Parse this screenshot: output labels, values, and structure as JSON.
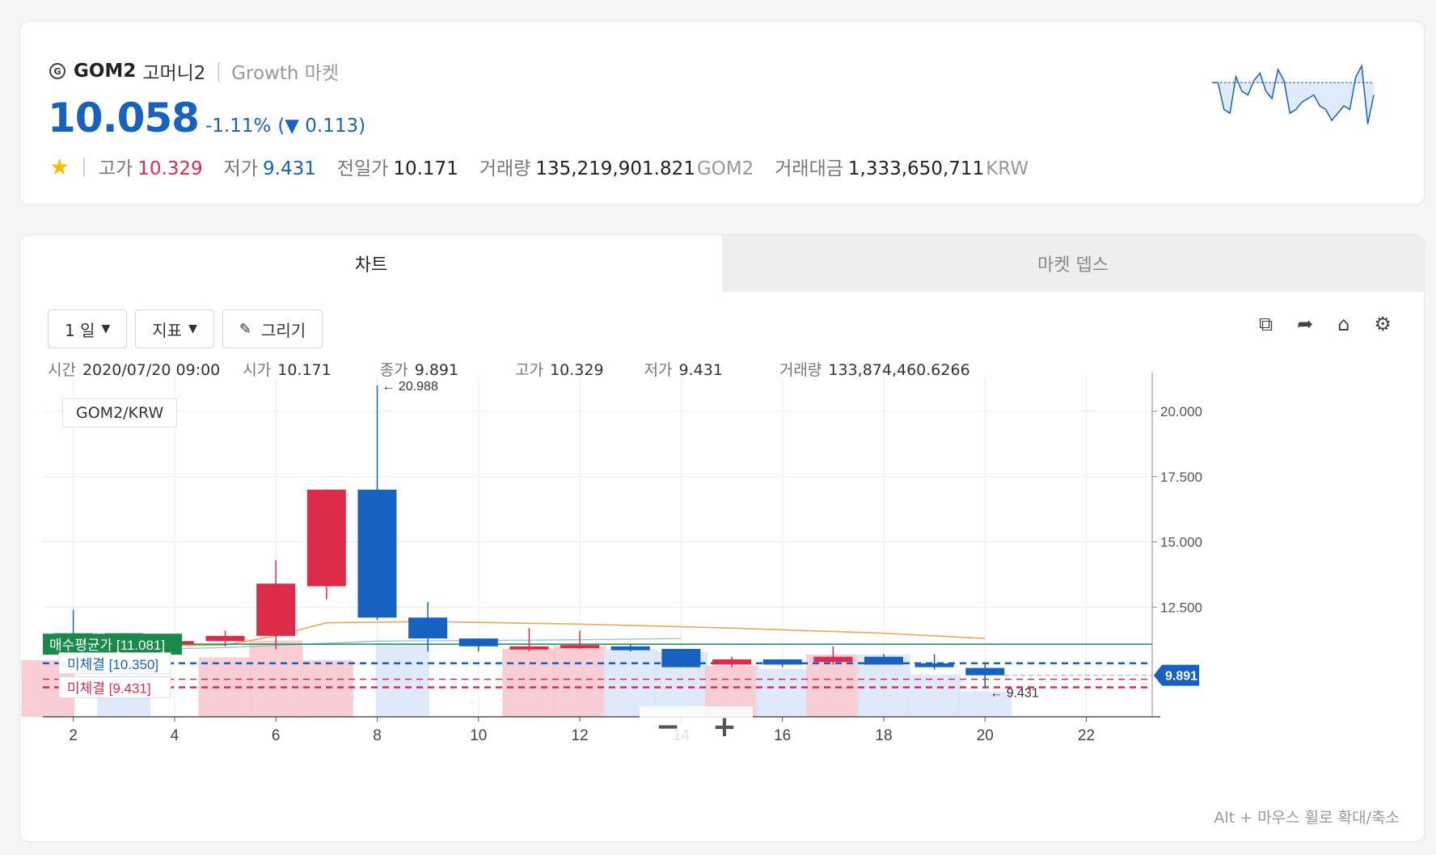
{
  "header": {
    "coin_icon": "G",
    "symbol": "GOM2",
    "korean_name": "고머니2",
    "market": "Growth 마켓",
    "price": "10.058",
    "change_pct": "-1.11%",
    "change_abs": "(▼ 0.113)",
    "favorite_icon": "star-icon",
    "stats": [
      {
        "label": "고가",
        "value": "10.329",
        "color": "#dd2b4a"
      },
      {
        "label": "저가",
        "value": "9.431",
        "color": "#1761c0"
      },
      {
        "label": "전일가",
        "value": "10.171",
        "color": "#222222"
      }
    ],
    "volume_label": "거래량",
    "volume_value": "135,219,901.821",
    "volume_unit": "GOM2",
    "amount_label": "거래대금",
    "amount_value": "1,333,650,711",
    "amount_unit": "KRW"
  },
  "tabs": [
    {
      "label": "차트",
      "active": true
    },
    {
      "label": "마켓 뎁스",
      "active": false
    }
  ],
  "toolbar": {
    "interval": "1 일",
    "indicator": "지표",
    "draw": "그리기",
    "icons": [
      "external-link-icon",
      "share-icon",
      "tag-icon",
      "settings-icon"
    ]
  },
  "ohlc": {
    "time_label": "시간",
    "time": "2020/07/20 09:00",
    "open_label": "시가",
    "open": "10.171",
    "close_label": "종가",
    "close": "9.891",
    "high_label": "고가",
    "high": "10.329",
    "low_label": "저가",
    "low": "9.431",
    "volume_label": "거래량",
    "volume": "133,874,460.6266"
  },
  "pair": "GOM2/KRW",
  "hint": "Alt + 마우스 휠로 확대/축소",
  "zoom": {
    "minus": "−",
    "plus": "+"
  },
  "colors": {
    "up": "#dd2b4a",
    "down": "#1761c0",
    "accent": "#1761c0"
  },
  "chart_data": {
    "type": "candlestick",
    "x_ticks": [
      "2",
      "4",
      "6",
      "8",
      "10",
      "12",
      "14",
      "16",
      "18",
      "20",
      "22"
    ],
    "y_ticks": [
      "12.500",
      "15.000",
      "17.500",
      "20.000"
    ],
    "ylim": [
      8.3,
      21.3
    ],
    "xlim": [
      1.4,
      23.3
    ],
    "candles": [
      {
        "x": 2,
        "o": 11.5,
        "h": 12.4,
        "l": 11.3,
        "c": 11.3
      },
      {
        "x": 3,
        "o": 11.5,
        "h": 11.5,
        "l": 11.2,
        "c": 11.2
      },
      {
        "x": 4,
        "o": 11.1,
        "h": 11.2,
        "l": 10.9,
        "c": 11.2
      },
      {
        "x": 5,
        "o": 11.2,
        "h": 11.6,
        "l": 11.0,
        "c": 11.4
      },
      {
        "x": 6,
        "o": 11.4,
        "h": 14.3,
        "l": 10.9,
        "c": 13.4
      },
      {
        "x": 7,
        "o": 13.3,
        "h": 17.0,
        "l": 12.8,
        "c": 17.0
      },
      {
        "x": 8,
        "o": 17.0,
        "h": 20.988,
        "l": 12.0,
        "c": 12.1
      },
      {
        "x": 9,
        "o": 12.1,
        "h": 12.7,
        "l": 10.8,
        "c": 11.3
      },
      {
        "x": 10,
        "o": 11.3,
        "h": 11.3,
        "l": 10.8,
        "c": 11.0
      },
      {
        "x": 11,
        "o": 10.9,
        "h": 11.7,
        "l": 10.8,
        "c": 11.0
      },
      {
        "x": 12,
        "o": 11.0,
        "h": 11.6,
        "l": 10.9,
        "c": 11.05
      },
      {
        "x": 13,
        "o": 11.0,
        "h": 11.1,
        "l": 10.8,
        "c": 10.85
      },
      {
        "x": 14,
        "o": 10.9,
        "h": 10.9,
        "l": 10.2,
        "c": 10.2
      },
      {
        "x": 15,
        "o": 10.3,
        "h": 10.6,
        "l": 10.2,
        "c": 10.5
      },
      {
        "x": 16,
        "o": 10.5,
        "h": 10.5,
        "l": 10.2,
        "c": 10.3
      },
      {
        "x": 17,
        "o": 10.4,
        "h": 11.0,
        "l": 10.3,
        "c": 10.6
      },
      {
        "x": 18,
        "o": 10.6,
        "h": 10.7,
        "l": 10.3,
        "c": 10.3
      },
      {
        "x": 19,
        "o": 10.35,
        "h": 10.7,
        "l": 10.1,
        "c": 10.2
      },
      {
        "x": 20,
        "o": 10.171,
        "h": 10.329,
        "l": 9.431,
        "c": 9.891
      }
    ],
    "volume": [
      {
        "x": 1.5,
        "v": 2.0,
        "up": true
      },
      {
        "x": 3,
        "v": 1.1,
        "up": false
      },
      {
        "x": 5,
        "v": 2.1,
        "up": true
      },
      {
        "x": 6,
        "v": 2.7,
        "up": true
      },
      {
        "x": 7,
        "v": 2.0,
        "up": true
      },
      {
        "x": 8.5,
        "v": 2.6,
        "up": false
      },
      {
        "x": 11,
        "v": 2.4,
        "up": true
      },
      {
        "x": 12,
        "v": 2.5,
        "up": true
      },
      {
        "x": 13,
        "v": 2.4,
        "up": false
      },
      {
        "x": 14,
        "v": 2.3,
        "up": false
      },
      {
        "x": 15,
        "v": 1.8,
        "up": true
      },
      {
        "x": 16,
        "v": 1.7,
        "up": false
      },
      {
        "x": 17,
        "v": 2.2,
        "up": true
      },
      {
        "x": 18,
        "v": 2.2,
        "up": false
      },
      {
        "x": 19,
        "v": 1.5,
        "up": false
      },
      {
        "x": 20,
        "v": 0.9,
        "up": false
      }
    ],
    "ma_line": [
      {
        "x": 2,
        "y": 11.0
      },
      {
        "x": 5,
        "y": 11.05
      },
      {
        "x": 6,
        "y": 11.4
      },
      {
        "x": 7,
        "y": 11.9
      },
      {
        "x": 9,
        "y": 11.95
      },
      {
        "x": 12,
        "y": 11.85
      },
      {
        "x": 15,
        "y": 11.7
      },
      {
        "x": 18,
        "y": 11.5
      },
      {
        "x": 20,
        "y": 11.3
      }
    ],
    "ma2_line": [
      {
        "x": 1.4,
        "y": 10.8
      },
      {
        "x": 5,
        "y": 10.95
      },
      {
        "x": 8,
        "y": 11.2
      },
      {
        "x": 12,
        "y": 11.25
      },
      {
        "x": 14,
        "y": 11.3
      }
    ],
    "levels": [
      {
        "name": "매수평균가",
        "value": 11.081,
        "tag": "[11.081]",
        "color": "#1a8a4a",
        "style": "solid"
      },
      {
        "name": "미체결",
        "value": 10.35,
        "tag": "[10.350]",
        "color": "#1761c0",
        "style": "dashed"
      },
      {
        "name": "미체결",
        "value": 9.431,
        "tag": "[9.431]",
        "color": "#dd2b4a",
        "style": "dashed"
      }
    ],
    "high_label": "← 20.988",
    "low_label": "← 9.431",
    "last_price": "9.891",
    "last_value": 9.891
  },
  "sparkline": [
    0.72,
    0.72,
    0.35,
    0.3,
    0.8,
    0.6,
    0.55,
    0.75,
    0.85,
    0.6,
    0.5,
    0.9,
    0.75,
    0.3,
    0.35,
    0.45,
    0.5,
    0.55,
    0.4,
    0.35,
    0.2,
    0.3,
    0.4,
    0.35,
    0.8,
    0.95,
    0.15,
    0.55
  ]
}
